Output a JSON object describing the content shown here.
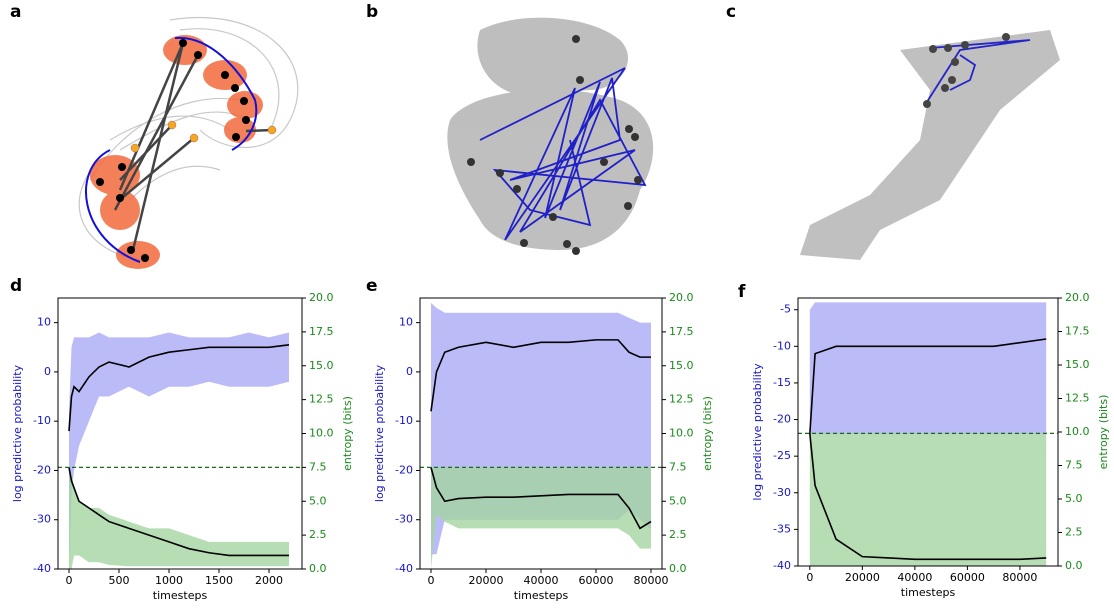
{
  "panel_labels": [
    "a",
    "b",
    "c",
    "d",
    "e",
    "f"
  ],
  "chart_data": [
    {
      "type": "line",
      "xlabel": "timesteps",
      "ylabel": "log predictive probability",
      "y2label": "entropy (bits)",
      "x": [
        0,
        25,
        50,
        100,
        200,
        300,
        400,
        600,
        800,
        1000,
        1200,
        1400,
        1600,
        1800,
        2000,
        2200
      ],
      "xlim": [
        -110,
        2330
      ],
      "xticks": [
        0,
        500,
        1000,
        1500,
        2000
      ],
      "ylim": [
        -40,
        15
      ],
      "yticks": [
        -40,
        -30,
        -20,
        -10,
        0,
        10
      ],
      "y2lim": [
        0,
        20
      ],
      "y2ticks": [
        {
          "value": 0,
          "label": "0.0"
        },
        2.5,
        {
          "value": 5,
          "label": "5.0"
        },
        7.5,
        {
          "value": 10,
          "label": "10.0"
        },
        12.5,
        {
          "value": 15,
          "label": "15.0"
        },
        17.5,
        {
          "value": 20,
          "label": "20.0"
        }
      ],
      "hline": 7.5,
      "hline_axis": "y2",
      "series": [
        {
          "color": "#aaaaf6",
          "axis": "y",
          "high": [
            -8,
            5,
            7,
            7,
            7,
            8,
            7,
            7,
            7,
            8,
            7,
            7,
            7,
            8,
            7,
            8
          ],
          "low": [
            -40,
            -25,
            -20,
            -15,
            -10,
            -5,
            -5,
            -3,
            -5,
            -3,
            -3,
            -2,
            -3,
            -3,
            -3,
            -2
          ]
        },
        {
          "color": "#a4d4a0",
          "axis": "y2",
          "high": [
            7.5,
            7,
            6,
            5,
            4.5,
            4.5,
            4,
            3.5,
            3,
            3,
            2.5,
            2,
            2,
            2,
            2,
            2
          ],
          "low": [
            0,
            0,
            1,
            1,
            0.5,
            0.5,
            0.3,
            0.2,
            0.2,
            0.2,
            0.2,
            0.2,
            0.2,
            0.2,
            0.2,
            0.2
          ]
        },
        {
          "color": "#000000",
          "axis": "y",
          "values": [
            -12,
            -5,
            -3,
            -4,
            -1,
            1,
            2,
            1,
            3,
            4,
            4.5,
            5,
            5,
            5,
            5,
            5.5
          ]
        },
        {
          "color": "#000000",
          "axis": "y2",
          "values": [
            7.5,
            6.5,
            6,
            5,
            4.5,
            4,
            3.5,
            3,
            2.5,
            2,
            1.5,
            1.2,
            1,
            1,
            1,
            1
          ]
        }
      ]
    },
    {
      "type": "line",
      "xlabel": "timesteps",
      "ylabel": "log predictive probability",
      "y2label": "entropy (bits)",
      "x": [
        0,
        2000,
        5000,
        10000,
        20000,
        30000,
        40000,
        50000,
        60000,
        68000,
        72000,
        76000,
        80000
      ],
      "xlim": [
        -4000,
        84000
      ],
      "xticks": [
        0,
        20000,
        40000,
        60000,
        80000
      ],
      "ylim": [
        -40,
        15
      ],
      "yticks": [
        -40,
        -30,
        -20,
        -10,
        0,
        10
      ],
      "y2lim": [
        0,
        20
      ],
      "y2ticks": [
        {
          "value": 0,
          "label": "0.0"
        },
        2.5,
        {
          "value": 5,
          "label": "5.0"
        },
        7.5,
        {
          "value": 10,
          "label": "10.0"
        },
        12.5,
        {
          "value": 15,
          "label": "15.0"
        },
        17.5,
        {
          "value": 20,
          "label": "20.0"
        }
      ],
      "hline": 7.5,
      "hline_axis": "y2",
      "series": [
        {
          "color": "#aaaaf6",
          "axis": "y",
          "high": [
            14,
            13,
            12,
            12,
            12,
            12,
            12,
            12,
            12,
            12,
            11,
            10,
            10
          ],
          "low": [
            -37,
            -37,
            -30,
            -30,
            -30,
            -30,
            -30,
            -30,
            -30,
            -30,
            -28,
            -30,
            -32
          ]
        },
        {
          "color": "#a4d4a0",
          "axis": "y2",
          "high": [
            7.5,
            7.5,
            7.5,
            7.5,
            7.5,
            7.5,
            7.5,
            7.5,
            7.5,
            7.5,
            7.5,
            7.5,
            7.5
          ],
          "low": [
            0,
            4,
            3.5,
            3,
            3,
            3,
            3,
            3,
            3,
            3,
            2.5,
            1.5,
            1.5
          ]
        },
        {
          "color": "#000000",
          "axis": "y",
          "values": [
            -8,
            0,
            4,
            5,
            6,
            5,
            6,
            6,
            6.5,
            6.5,
            4,
            3,
            3
          ]
        },
        {
          "color": "#000000",
          "axis": "y2",
          "values": [
            7.5,
            6,
            5,
            5.2,
            5.3,
            5.3,
            5.4,
            5.5,
            5.5,
            5.5,
            4.5,
            3,
            3.5
          ]
        }
      ]
    },
    {
      "type": "line",
      "xlabel": "timesteps",
      "ylabel": "log predictive probability",
      "y2label": "entropy (bits)",
      "x": [
        0,
        2000,
        10000,
        20000,
        30000,
        40000,
        50000,
        60000,
        70000,
        80000,
        90000
      ],
      "xlim": [
        -4500,
        94500
      ],
      "xticks": [
        0,
        20000,
        40000,
        60000,
        80000
      ],
      "ylim": [
        -40,
        -3.4
      ],
      "yticks": [
        -40,
        -35,
        -30,
        -25,
        -20,
        -15,
        -10,
        -5
      ],
      "y2lim": [
        0,
        20
      ],
      "y2ticks": [
        {
          "value": 0,
          "label": "0.0"
        },
        2.5,
        {
          "value": 5,
          "label": "5.0"
        },
        7.5,
        {
          "value": 10,
          "label": "10.0"
        },
        12.5,
        {
          "value": 15,
          "label": "15.0"
        },
        17.5,
        {
          "value": 20,
          "label": "20.0"
        }
      ],
      "hline": 9.9,
      "hline_axis": "y2",
      "series": [
        {
          "color": "#aaaaf6",
          "axis": "y",
          "high": [
            -5,
            -4,
            -4,
            -4,
            -4,
            -4,
            -4,
            -4,
            -4,
            -4,
            -4
          ],
          "low": [
            -22,
            -22,
            -22,
            -22,
            -22,
            -22,
            -22,
            -22,
            -22,
            -22,
            -22
          ]
        },
        {
          "color": "#a4d4a0",
          "axis": "y2",
          "high": [
            9.9,
            9.9,
            9.9,
            9.9,
            9.9,
            9.9,
            9.9,
            9.9,
            9.9,
            9.9,
            9.9
          ],
          "low": [
            0,
            0,
            0,
            0,
            0,
            0,
            0,
            0,
            0,
            0,
            0
          ]
        },
        {
          "color": "#000000",
          "axis": "y",
          "values": [
            -22,
            -11,
            -10,
            -10,
            -10,
            -10,
            -10,
            -10,
            -10,
            -9.5,
            -9
          ]
        },
        {
          "color": "#000000",
          "axis": "y2",
          "values": [
            9.9,
            6,
            2,
            0.7,
            0.6,
            0.5,
            0.5,
            0.5,
            0.5,
            0.5,
            0.6
          ]
        }
      ]
    }
  ]
}
